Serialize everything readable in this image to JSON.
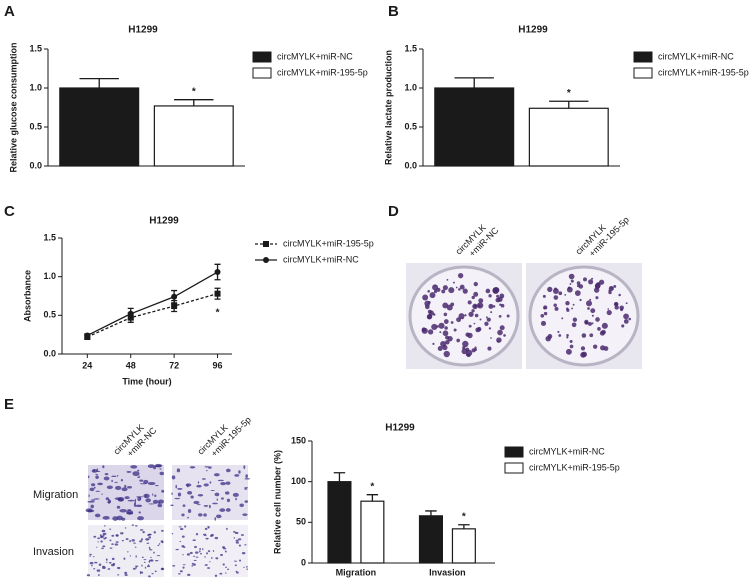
{
  "figure": {
    "panel_labels": [
      "A",
      "B",
      "C",
      "D",
      "E"
    ],
    "plate_labels": [
      [
        "circMYLK",
        "+miR-NC"
      ],
      [
        "circMYLK",
        "+miR-195-5p"
      ]
    ],
    "well_column_labels": [
      [
        "circMYLK",
        "+miR-NC"
      ],
      [
        "circMYLK",
        "+miR-195-5p"
      ]
    ],
    "well_row_labels": [
      "Migration",
      "Invasion"
    ]
  },
  "chart_data": [
    {
      "type": "bar",
      "title": "H1299",
      "ylabel": "Relative glucose consumption",
      "ylim": [
        0,
        1.5
      ],
      "yticks": [
        {
          "value": 0,
          "label": "0.0"
        },
        {
          "value": 0.5,
          "label": "0.5"
        },
        {
          "value": 1,
          "label": "1.0"
        },
        {
          "value": 1.5,
          "label": "1.5"
        }
      ],
      "series": [
        {
          "name": "circMYLK+miR-NC",
          "color": "#1a1a1a",
          "values": [
            1.0
          ],
          "errors": [
            0.12
          ]
        },
        {
          "name": "circMYLK+miR-195-5p",
          "color": "#ffffff",
          "values": [
            0.77
          ],
          "errors": [
            0.08
          ]
        }
      ],
      "annotations": [
        "*"
      ]
    },
    {
      "type": "bar",
      "title": "H1299",
      "ylabel": "Relative lactate production",
      "ylim": [
        0,
        1.5
      ],
      "yticks": [
        {
          "value": 0,
          "label": "0.0"
        },
        {
          "value": 0.5,
          "label": "0.5"
        },
        {
          "value": 1,
          "label": "1.0"
        },
        {
          "value": 1.5,
          "label": "1.5"
        }
      ],
      "series": [
        {
          "name": "circMYLK+miR-NC",
          "color": "#1a1a1a",
          "values": [
            1.0
          ],
          "errors": [
            0.13
          ]
        },
        {
          "name": "circMYLK+miR-195-5p",
          "color": "#ffffff",
          "values": [
            0.74
          ],
          "errors": [
            0.09
          ]
        }
      ],
      "annotations": [
        "*"
      ]
    },
    {
      "type": "line",
      "title": "H1299",
      "xlabel": "Time (hour)",
      "ylabel": "Absorbance",
      "x": [
        24,
        48,
        72,
        96
      ],
      "xlim": [
        10,
        104
      ],
      "xticks": [
        24,
        48,
        72,
        96
      ],
      "ylim": [
        0,
        1.5
      ],
      "yticks": [
        {
          "value": 0,
          "label": "0.0"
        },
        {
          "value": 0.5,
          "label": "0.5"
        },
        {
          "value": 1,
          "label": "1.0"
        },
        {
          "value": 1.5,
          "label": "1.5"
        }
      ],
      "series": [
        {
          "name": "circMYLK+miR-195-5p",
          "color": "#1a1a1a",
          "linestyle": "dashed",
          "marker": "square",
          "values": [
            0.22,
            0.47,
            0.62,
            0.78
          ],
          "errors": [
            0.03,
            0.06,
            0.07,
            0.07
          ]
        },
        {
          "name": "circMYLK+miR-NC",
          "color": "#1a1a1a",
          "linestyle": "solid",
          "marker": "circle",
          "values": [
            0.24,
            0.52,
            0.74,
            1.06
          ],
          "errors": [
            0.02,
            0.07,
            0.08,
            0.1
          ]
        }
      ],
      "annotations": [
        "*"
      ]
    },
    {
      "type": "bar",
      "title": "H1299",
      "ylabel": "Relative cell number (%)",
      "categories": [
        "Migration",
        "Invasion"
      ],
      "ylim": [
        0,
        150
      ],
      "yticks": [
        0,
        50,
        100,
        150
      ],
      "series": [
        {
          "name": "circMYLK+miR-NC",
          "color": "#1a1a1a",
          "values": [
            100,
            58
          ],
          "errors": [
            11,
            6
          ]
        },
        {
          "name": "circMYLK+miR-195-5p",
          "color": "#ffffff",
          "values": [
            76,
            42
          ],
          "errors": [
            8,
            5
          ]
        }
      ],
      "annotations": [
        "*",
        "*"
      ]
    }
  ]
}
